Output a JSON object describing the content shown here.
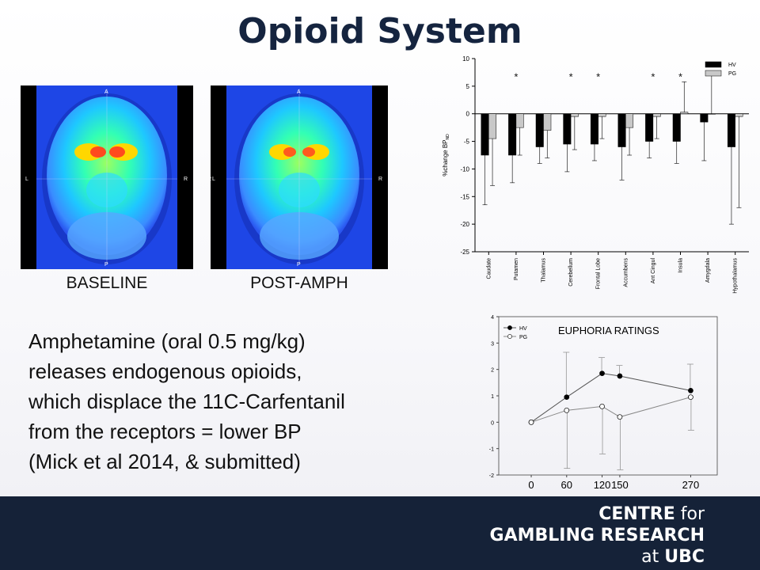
{
  "title": "Opioid System",
  "images": {
    "baseline_label": "BASELINE",
    "post_label": "POST-AMPH",
    "orient": {
      "anterior": "A",
      "posterior": "P",
      "left": "L",
      "right": "R"
    }
  },
  "body_text": [
    "Amphetamine (oral 0.5 mg/kg)",
    "releases endogenous opioids,",
    "which displace the 11C-Carfentanil",
    "from the receptors = lower BP",
    "(Mick et al 2014, & submitted)"
  ],
  "chart_data": [
    {
      "type": "bar",
      "title": "",
      "ylabel": "%change BP",
      "ylabel_sub": "ND",
      "ylim": [
        -25,
        10
      ],
      "yticks": [
        "10",
        "5",
        "0",
        "-5",
        "-10",
        "-15",
        "-20",
        "-25"
      ],
      "categories": [
        "Caudate",
        "Putamen",
        "Thalamus",
        "Cerebellum",
        "Frontal Lobe",
        "Accumbens",
        "Ant Cingul",
        "Insula",
        "Amygdala",
        "Hypothalamus"
      ],
      "series": [
        {
          "name": "HV",
          "values": [
            -7.5,
            -7.5,
            -6,
            -5.5,
            -5.5,
            -6,
            -5,
            -5,
            -1.5,
            -6
          ],
          "error": [
            9,
            5,
            3,
            5,
            3,
            6,
            3,
            4,
            7,
            14
          ]
        },
        {
          "name": "PG",
          "values": [
            -4.5,
            -2.5,
            -3,
            -0.5,
            -0.5,
            -2.5,
            -0.5,
            0.3,
            0,
            -0.5
          ],
          "error": [
            8.5,
            5,
            5,
            6,
            4,
            5,
            4,
            5.5,
            7.5,
            16.5
          ]
        }
      ],
      "significant": [
        "*",
        "*",
        "*",
        "*",
        "*"
      ],
      "significant_categories": [
        "Putamen",
        "Cerebellum",
        "Frontal Lobe",
        "Ant Cingul",
        "Insula"
      ],
      "legend": "top-right",
      "grid": false
    },
    {
      "type": "line",
      "title": "EUPHORIA  RATINGS",
      "xlabel": "",
      "ylabel": "",
      "x": [
        "0",
        "60",
        "120",
        "150",
        "270"
      ],
      "ylim": [
        -2,
        4
      ],
      "yticks": [
        "4",
        "3",
        "2",
        "1",
        "0",
        "-1",
        "-2"
      ],
      "series": [
        {
          "name": "HV",
          "values": [
            0,
            0.95,
            1.85,
            1.75,
            1.2
          ],
          "error": [
            0,
            1.7,
            0.6,
            0.4,
            1.0
          ]
        },
        {
          "name": "PG",
          "values": [
            0,
            0.45,
            0.6,
            0.2,
            0.95
          ],
          "error": [
            0,
            2.2,
            1.8,
            2.0,
            1.25
          ]
        }
      ],
      "legend": "top-left",
      "grid": false
    }
  ],
  "footer": {
    "line1a": "CENTRE",
    "line1b": "for",
    "line2": "GAMBLING RESEARCH",
    "line3a": "at",
    "line3b": "UBC"
  },
  "colors": {
    "title": "#15243f",
    "footer_bg": "#152238",
    "hv": "#000000",
    "pg": "#c8c8c8"
  }
}
